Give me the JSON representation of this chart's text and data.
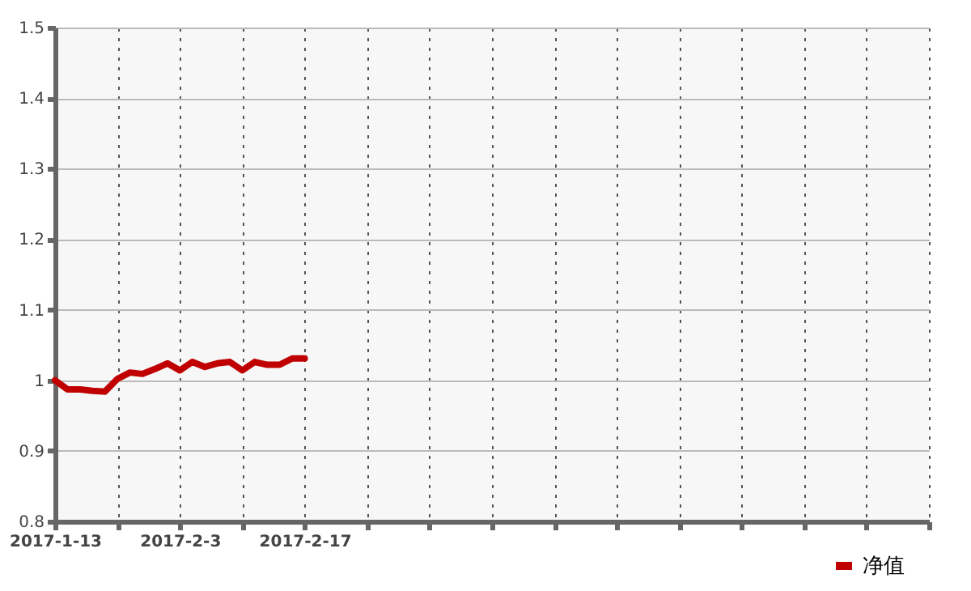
{
  "chart_data": {
    "type": "line",
    "categories": [
      "2017-1-13",
      null,
      null,
      null,
      null,
      null,
      null,
      null,
      null,
      null,
      "2017-2-3",
      null,
      null,
      null,
      null,
      null,
      null,
      null,
      null,
      null,
      "2017-2-17",
      null,
      null,
      null,
      null,
      null,
      null,
      null,
      null,
      null,
      null,
      null,
      null,
      null,
      null,
      null,
      null,
      null,
      null,
      null,
      null,
      null,
      null,
      null,
      null,
      null,
      null,
      null,
      null,
      null,
      null,
      null,
      null,
      null,
      null,
      null,
      null,
      null,
      null,
      null,
      null,
      null,
      null,
      null,
      null,
      null,
      null,
      null,
      null,
      null,
      null
    ],
    "series": [
      {
        "name": "净值",
        "color": "#c00000",
        "values": [
          1.0,
          0.987,
          0.987,
          0.985,
          0.984,
          1.002,
          1.011,
          1.009,
          1.016,
          1.024,
          1.014,
          1.026,
          1.019,
          1.024,
          1.026,
          1.014,
          1.026,
          1.022,
          1.022,
          1.031,
          1.031,
          null,
          null,
          null,
          null,
          null,
          null,
          null,
          null,
          null,
          null,
          null,
          null,
          null,
          null,
          null,
          null,
          null,
          null,
          null,
          null,
          null,
          null,
          null,
          null,
          null,
          null,
          null,
          null,
          null,
          null,
          null,
          null,
          null,
          null,
          null,
          null,
          null,
          null,
          null,
          null,
          null,
          null,
          null,
          null,
          null,
          null,
          null,
          null,
          null,
          null
        ]
      }
    ],
    "ylim": [
      0.8,
      1.5
    ],
    "yticks": [
      0.8,
      0.9,
      1,
      1.1,
      1.2,
      1.3,
      1.4,
      1.5
    ],
    "grid": true,
    "legend": "bottom right",
    "marker": "none",
    "line_style": "solid"
  }
}
